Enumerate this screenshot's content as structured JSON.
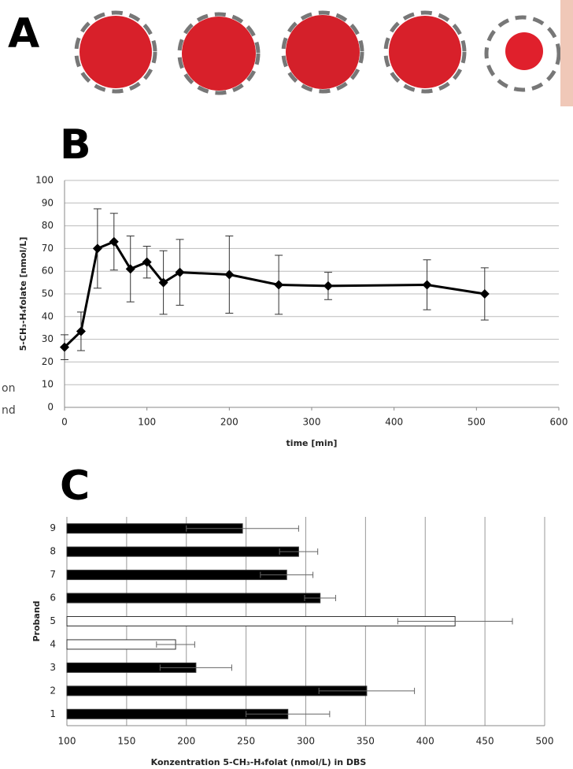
{
  "panels": [
    "A",
    "B",
    "C"
  ],
  "side_text": [
    "on",
    "nd"
  ],
  "chart_data": [
    {
      "type": "line",
      "x": [
        0,
        20,
        40,
        60,
        80,
        100,
        120,
        140,
        200,
        260,
        320,
        440,
        510
      ],
      "values": [
        26.5,
        33.5,
        70,
        73,
        61,
        64,
        55,
        59.5,
        58.5,
        54,
        53.5,
        54,
        50
      ],
      "errors": [
        5.5,
        8.5,
        17.5,
        12.5,
        14.5,
        7,
        14,
        14.5,
        17,
        13,
        6,
        11,
        11.5
      ],
      "color": "#000000",
      "xlim": [
        0,
        600
      ],
      "xticks": [
        0,
        100,
        200,
        300,
        400,
        500,
        600
      ],
      "ylim": [
        0,
        100
      ],
      "yticks": [
        0,
        10,
        20,
        30,
        40,
        50,
        60,
        70,
        80,
        90,
        100
      ],
      "grid": true,
      "xlabel": "time [min]",
      "ylabel": "5-CH₃-H₄folate [nmol/L]"
    },
    {
      "type": "hbar",
      "categories": [
        "1",
        "2",
        "3",
        "4",
        "5",
        "6",
        "7",
        "8",
        "9"
      ],
      "values": [
        285,
        351,
        208,
        191,
        425,
        312,
        284,
        294,
        247
      ],
      "errors": [
        35,
        40,
        30,
        16,
        48,
        13,
        22,
        16,
        47
      ],
      "colors": [
        "#000000",
        "#000000",
        "#000000",
        "#ffffff",
        "#ffffff",
        "#000000",
        "#000000",
        "#000000",
        "#000000"
      ],
      "xlim": [
        100,
        500
      ],
      "xticks": [
        100,
        150,
        200,
        250,
        300,
        350,
        400,
        450,
        500
      ],
      "grid": true,
      "xlabel": "Konzentration 5-CH₃-H₄folat (nmol/L) in DBS",
      "ylabel": "Proband"
    }
  ]
}
